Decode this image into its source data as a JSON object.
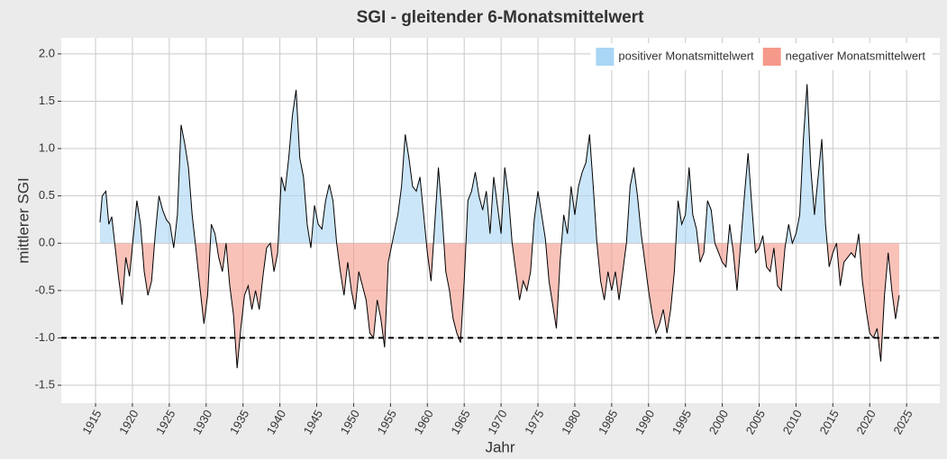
{
  "chart_data": {
    "type": "area",
    "title": "SGI - gleitender 6-Monatsmittelwert",
    "x_label": "Jahr",
    "y_label": "mittlerer SGI",
    "line_color": "#000000",
    "series": [
      {
        "name": "positiver Monatsmittelwert",
        "color": "#a9d6f4"
      },
      {
        "name": "negativer Monatsmittelwert",
        "color": "#f5998b"
      }
    ],
    "legend_position": "top-right",
    "grid": true,
    "reference_line": {
      "value": -1,
      "style": "dashed"
    },
    "xlim": [
      1910.35,
      2029.5
    ],
    "ylim": [
      -1.69,
      2.17
    ],
    "xticks": [
      1915,
      1920,
      1925,
      1930,
      1935,
      1940,
      1945,
      1950,
      1955,
      1960,
      1965,
      1970,
      1975,
      1980,
      1985,
      1990,
      1995,
      2000,
      2005,
      2010,
      2015,
      2020,
      2025
    ],
    "yticks": [
      {
        "value": 2,
        "label": "2.0"
      },
      1.5,
      {
        "value": 1,
        "label": "1.0"
      },
      0.5,
      {
        "value": 0,
        "label": "0.0"
      },
      -0.5,
      {
        "value": -1,
        "label": "-1.0"
      },
      -1.5
    ],
    "x": [
      1915.6,
      1915.9,
      1916.4,
      1916.8,
      1917.2,
      1917.6,
      1918.1,
      1918.6,
      1919.1,
      1919.6,
      1920.1,
      1920.6,
      1921.1,
      1921.6,
      1922.1,
      1922.6,
      1923.1,
      1923.6,
      1924.1,
      1924.6,
      1925.1,
      1925.6,
      1926.1,
      1926.6,
      1927.1,
      1927.6,
      1928.1,
      1928.6,
      1929.2,
      1929.7,
      1930.2,
      1930.7,
      1931.2,
      1931.7,
      1932.2,
      1932.7,
      1933.2,
      1933.7,
      1934.2,
      1934.7,
      1935.2,
      1935.7,
      1936.2,
      1936.7,
      1937.2,
      1937.7,
      1938.2,
      1938.7,
      1939.2,
      1939.7,
      1940.2,
      1940.7,
      1941.2,
      1941.7,
      1942.2,
      1942.7,
      1943.2,
      1943.7,
      1944.2,
      1944.7,
      1945.2,
      1945.7,
      1946.2,
      1946.7,
      1947.2,
      1947.7,
      1948.2,
      1948.7,
      1949.2,
      1949.7,
      1950.2,
      1950.7,
      1951.2,
      1951.7,
      1952.2,
      1952.7,
      1953.2,
      1953.7,
      1954.2,
      1954.7,
      1956,
      1956.5,
      1957,
      1957.5,
      1958,
      1958.5,
      1959,
      1959.5,
      1960,
      1960.5,
      1961,
      1961.5,
      1962,
      1962.5,
      1963,
      1963.5,
      1964,
      1964.5,
      1965,
      1965.5,
      1966,
      1966.5,
      1967,
      1967.5,
      1968,
      1968.5,
      1969,
      1969.5,
      1970,
      1970.5,
      1971,
      1971.5,
      1972,
      1972.5,
      1973,
      1973.5,
      1974,
      1974.5,
      1975,
      1975.5,
      1976,
      1976.5,
      1977,
      1977.5,
      1978,
      1978.5,
      1979,
      1979.5,
      1980,
      1980.5,
      1981,
      1981.5,
      1982,
      1982.5,
      1983,
      1983.5,
      1984,
      1984.5,
      1985,
      1985.5,
      1986,
      1986.5,
      1987,
      1987.5,
      1988,
      1988.5,
      1989,
      1989.5,
      1990,
      1990.5,
      1991,
      1991.5,
      1992,
      1992.5,
      1993,
      1993.5,
      1994,
      1994.5,
      1995,
      1995.5,
      1996,
      1996.5,
      1997,
      1997.5,
      1998,
      1998.5,
      1999,
      1999.5,
      2000,
      2000.5,
      2001,
      2001.5,
      2002,
      2002.5,
      2003,
      2003.5,
      2004,
      2004.5,
      2005,
      2005.5,
      2006,
      2006.5,
      2007,
      2007.5,
      2008,
      2008.5,
      2009,
      2009.5,
      2010,
      2010.5,
      2011,
      2011.5,
      2012,
      2012.5,
      2013,
      2013.5,
      2014,
      2014.5,
      2015,
      2015.5,
      2016,
      2016.5,
      2017,
      2017.5,
      2018,
      2018.5,
      2019,
      2019.5,
      2020,
      2020.5,
      2021,
      2021.5,
      2022,
      2022.5,
      2023,
      2023.5,
      2024
    ],
    "values": [
      0.22,
      0.5,
      0.55,
      0.2,
      0.28,
      0.0,
      -0.35,
      -0.65,
      -0.15,
      -0.35,
      0.05,
      0.45,
      0.2,
      -0.3,
      -0.55,
      -0.4,
      0.1,
      0.5,
      0.35,
      0.25,
      0.2,
      -0.05,
      0.3,
      1.25,
      1.05,
      0.8,
      0.3,
      -0.05,
      -0.5,
      -0.85,
      -0.55,
      0.2,
      0.1,
      -0.15,
      -0.3,
      0.0,
      -0.45,
      -0.75,
      -1.32,
      -0.9,
      -0.55,
      -0.45,
      -0.7,
      -0.5,
      -0.7,
      -0.35,
      -0.05,
      0.0,
      -0.3,
      -0.1,
      0.7,
      0.55,
      0.9,
      1.35,
      1.62,
      0.9,
      0.7,
      0.2,
      -0.05,
      0.4,
      0.2,
      0.15,
      0.45,
      0.62,
      0.45,
      0.0,
      -0.3,
      -0.55,
      -0.2,
      -0.5,
      -0.7,
      -0.3,
      -0.45,
      -0.6,
      -0.95,
      -1.0,
      -0.6,
      -0.8,
      -1.1,
      -0.2,
      0.3,
      0.6,
      1.15,
      0.9,
      0.6,
      0.55,
      0.7,
      0.3,
      -0.1,
      -0.4,
      0.2,
      0.8,
      0.3,
      -0.3,
      -0.5,
      -0.8,
      -0.95,
      -1.05,
      -0.4,
      0.45,
      0.55,
      0.75,
      0.5,
      0.35,
      0.55,
      0.1,
      0.7,
      0.4,
      0.1,
      0.8,
      0.5,
      0.0,
      -0.3,
      -0.6,
      -0.4,
      -0.5,
      -0.3,
      0.25,
      0.55,
      0.3,
      0.05,
      -0.4,
      -0.65,
      -0.9,
      -0.2,
      0.3,
      0.1,
      0.6,
      0.3,
      0.6,
      0.75,
      0.85,
      1.15,
      0.6,
      0.0,
      -0.4,
      -0.6,
      -0.3,
      -0.5,
      -0.3,
      -0.6,
      -0.3,
      0.0,
      0.6,
      0.8,
      0.5,
      0.1,
      -0.2,
      -0.5,
      -0.75,
      -0.95,
      -0.85,
      -0.7,
      -0.95,
      -0.7,
      -0.3,
      0.45,
      0.2,
      0.3,
      0.8,
      0.3,
      0.15,
      -0.2,
      -0.1,
      0.45,
      0.35,
      0.0,
      -0.1,
      -0.2,
      -0.25,
      0.2,
      -0.1,
      -0.5,
      0.0,
      0.5,
      0.95,
      0.4,
      -0.1,
      -0.05,
      0.08,
      -0.25,
      -0.3,
      -0.05,
      -0.45,
      -0.5,
      -0.05,
      0.2,
      0.0,
      0.1,
      0.3,
      1.1,
      1.68,
      0.8,
      0.3,
      0.7,
      1.1,
      0.2,
      -0.25,
      -0.1,
      0.0,
      -0.45,
      -0.2,
      -0.15,
      -0.1,
      -0.15,
      0.1,
      -0.4,
      -0.7,
      -0.95,
      -1.0,
      -0.9,
      -1.25,
      -0.55,
      -0.1,
      -0.5,
      -0.8,
      -0.55
    ]
  }
}
